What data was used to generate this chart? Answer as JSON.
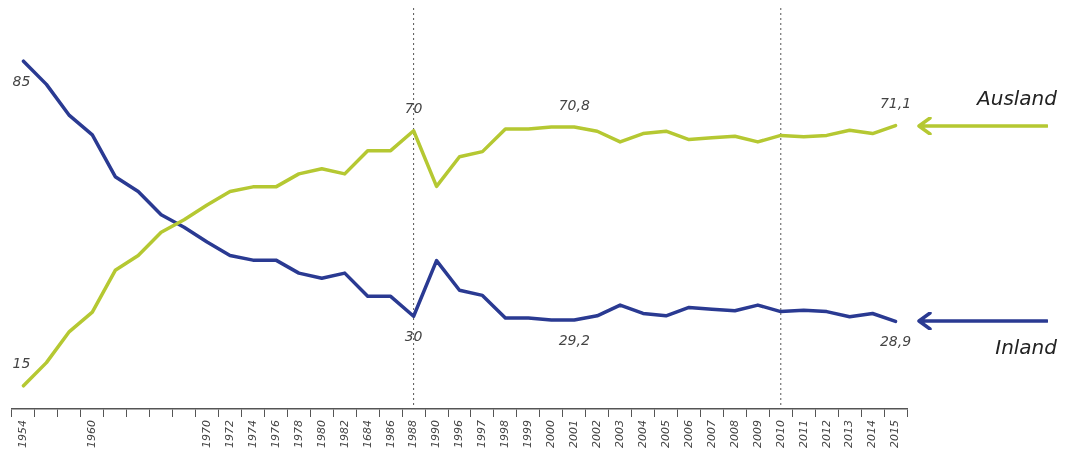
{
  "chart_data": {
    "type": "line",
    "categories": [
      "1954",
      null,
      null,
      "1960",
      null,
      null,
      null,
      null,
      "1970",
      "1972",
      "1974",
      "1976",
      "1978",
      "1980",
      "1982",
      "1684",
      "1986",
      "1988",
      "1990",
      "1996",
      "1997",
      "1998",
      "1999",
      "2000",
      "2001",
      "2002",
      "2003",
      "2004",
      "2005",
      "2006",
      "2007",
      "2008",
      "2009",
      "2010",
      "2011",
      "2012",
      "2013",
      "2014",
      "2015"
    ],
    "series": [
      {
        "name": "Ausland",
        "color": "#b5c832",
        "values": [
          15,
          20,
          26.7,
          30.9,
          39.9,
          43.1,
          48.1,
          50.8,
          54,
          56.9,
          57.9,
          57.9,
          60.7,
          61.8,
          60.7,
          65.7,
          65.7,
          70,
          58,
          64.4,
          65.5,
          70.4,
          70.4,
          70.8,
          70.8,
          69.9,
          67.6,
          69.4,
          69.9,
          68.1,
          68.5,
          68.8,
          67.6,
          69,
          68.7,
          69,
          70.1,
          69.4,
          71.1
        ],
        "value_labels": [
          "15",
          null,
          null,
          null,
          null,
          null,
          null,
          null,
          null,
          null,
          null,
          null,
          null,
          null,
          null,
          null,
          null,
          "70",
          null,
          null,
          null,
          null,
          null,
          null,
          "70,8",
          null,
          null,
          null,
          null,
          null,
          null,
          null,
          null,
          null,
          null,
          null,
          null,
          null,
          "71,1"
        ]
      },
      {
        "name": "Inland",
        "color": "#2a3a92",
        "values": [
          85,
          80,
          73.3,
          69.1,
          60.1,
          56.9,
          51.9,
          49.2,
          46,
          43.1,
          42.1,
          42.1,
          39.3,
          38.2,
          39.3,
          34.3,
          34.3,
          30,
          42,
          35.6,
          34.5,
          29.6,
          29.6,
          29.2,
          29.2,
          30.1,
          32.4,
          30.6,
          30.1,
          31.9,
          31.5,
          31.2,
          32.4,
          31,
          31.3,
          31,
          29.9,
          30.6,
          28.9
        ],
        "value_labels": [
          "85",
          null,
          null,
          null,
          null,
          null,
          null,
          null,
          null,
          null,
          null,
          null,
          null,
          null,
          null,
          null,
          null,
          "30",
          null,
          null,
          null,
          null,
          null,
          null,
          "29,2",
          null,
          null,
          null,
          null,
          null,
          null,
          null,
          null,
          null,
          null,
          null,
          null,
          null,
          "28,9"
        ]
      }
    ],
    "ref_lines": [
      {
        "axis": "x",
        "value": "1988",
        "line_style": "dotted",
        "color": "#555555"
      },
      {
        "axis": "x",
        "value": "2010",
        "line_style": "dotted",
        "color": "#555555"
      }
    ],
    "grid": false,
    "legend": false,
    "tick_labels": "x",
    "marker": "none",
    "line_style": "solid"
  }
}
